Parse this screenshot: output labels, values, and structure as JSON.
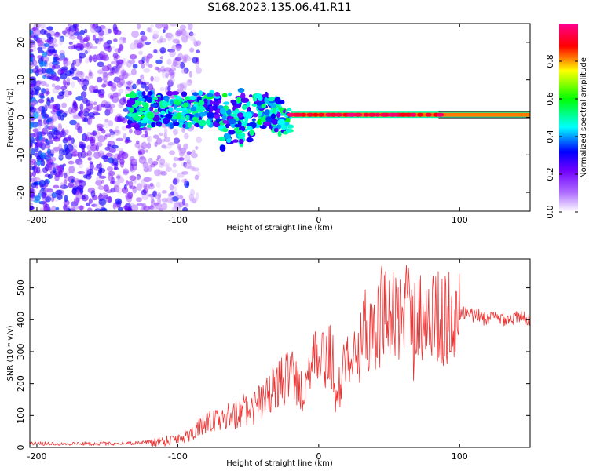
{
  "title": "S168.2023.135.06.41.R11",
  "chart_data": [
    {
      "type": "heatmap",
      "name": "spectrogram",
      "xlabel": "Height of straight line (km)",
      "ylabel": "Frequency (Hz)",
      "xlim": [
        -205,
        150
      ],
      "ylim": [
        -25,
        25
      ],
      "xticks": [
        -200,
        -100,
        0,
        100
      ],
      "yticks": [
        -20,
        -10,
        0,
        10,
        20
      ],
      "colorbar": {
        "label": "Normalized spectral amplitude",
        "range": [
          0,
          1
        ],
        "ticks": [
          0.0,
          0.2,
          0.4,
          0.6,
          0.8
        ],
        "tick_labels": [
          "0.0",
          "0.2",
          "0.4",
          "0.6",
          "0.8"
        ],
        "colors": [
          "#ffffff",
          "#b070ff",
          "#7000ff",
          "#0000ff",
          "#00ffff",
          "#00ff00",
          "#ffff00",
          "#ff0000",
          "#ff0090"
        ]
      },
      "features": [
        {
          "description": "diffuse noise",
          "x_range": [
            -205,
            -105
          ],
          "freq_range": [
            -25,
            25
          ],
          "level": 0.15
        },
        {
          "description": "strong line",
          "x_range": [
            -20,
            150
          ],
          "freq": 0.7,
          "level": 0.9
        }
      ]
    },
    {
      "type": "line",
      "name": "snr",
      "xlabel": "Height of straight line (km)",
      "ylabel": "SNR (10 * v/v)",
      "xlim": [
        -205,
        150
      ],
      "ylim": [
        0,
        590
      ],
      "xticks": [
        -200,
        -100,
        0,
        100
      ],
      "yticks": [
        0,
        100,
        200,
        300,
        400,
        500
      ],
      "color": "#ee3333",
      "trend": {
        "x": [
          -205,
          -150,
          -130,
          -110,
          -95,
          -80,
          -65,
          -50,
          -40,
          -30,
          -20,
          -12,
          -5,
          0,
          10,
          12,
          20,
          30,
          45,
          60,
          75,
          90,
          100,
          120,
          150
        ],
        "y": [
          12,
          12,
          14,
          20,
          35,
          75,
          95,
          115,
          145,
          190,
          230,
          180,
          250,
          270,
          290,
          120,
          310,
          360,
          400,
          420,
          410,
          400,
          420,
          405,
          405
        ]
      }
    }
  ]
}
